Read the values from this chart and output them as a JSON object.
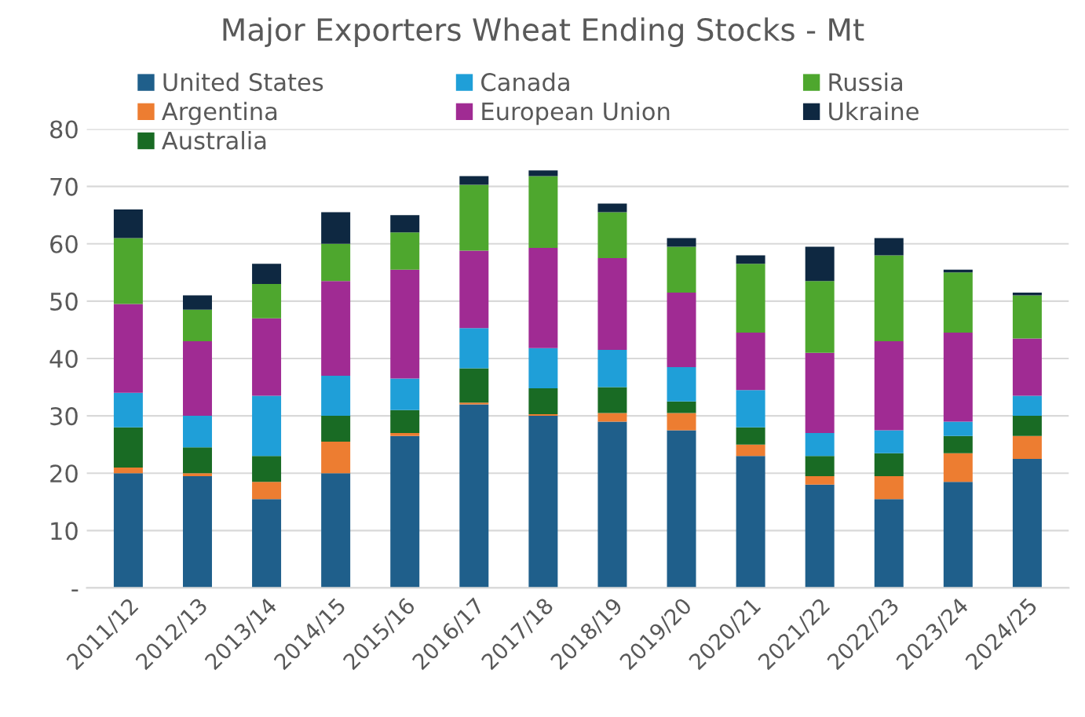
{
  "chart_data": {
    "type": "bar",
    "title": "Major Exporters Wheat Ending Stocks - Mt",
    "stacked": true,
    "categories": [
      "2011/12",
      "2012/13",
      "2013/14",
      "2014/15",
      "2015/16",
      "2016/17",
      "2017/18",
      "2018/19",
      "2019/20",
      "2020/21",
      "2021/22",
      "2022/23",
      "2023/24",
      "2024/25"
    ],
    "series": [
      {
        "name": "United States",
        "color": "#1f5f8b",
        "values": [
          20,
          19.5,
          15.5,
          20,
          26.5,
          32,
          30,
          29,
          27.5,
          23,
          18,
          15.5,
          18.5,
          22.5
        ]
      },
      {
        "name": "Argentina",
        "color": "#ed7d31",
        "values": [
          1,
          0.5,
          3,
          5.5,
          0.5,
          0.3,
          0.3,
          1.5,
          3,
          2,
          1.5,
          4,
          5,
          4
        ]
      },
      {
        "name": "Australia",
        "color": "#196b24",
        "values": [
          7,
          4.5,
          4.5,
          4.5,
          4,
          6,
          4.5,
          4.5,
          2,
          3,
          3.5,
          4,
          3,
          3.5
        ]
      },
      {
        "name": "Canada",
        "color": "#1f9fd8",
        "values": [
          6,
          5.5,
          10.5,
          7,
          5.5,
          7,
          7,
          6.5,
          6,
          6.5,
          4,
          4,
          2.5,
          3.5
        ]
      },
      {
        "name": "European Union",
        "color": "#a02b93",
        "values": [
          15.5,
          13,
          13.5,
          16.5,
          19,
          13.5,
          17.5,
          16,
          13,
          10,
          14,
          15.5,
          15.5,
          10
        ]
      },
      {
        "name": "Russia",
        "color": "#4ea72e",
        "values": [
          11.5,
          5.5,
          6,
          6.5,
          6.5,
          11.5,
          12.5,
          8,
          8,
          12,
          12.5,
          15,
          10.5,
          7.5
        ]
      },
      {
        "name": "Ukraine",
        "color": "#0e2841",
        "values": [
          5,
          2.5,
          3.5,
          5.5,
          3,
          1.5,
          1,
          1.5,
          1.5,
          1.5,
          6,
          3,
          0.5,
          0.5
        ]
      }
    ],
    "ylim": [
      0,
      80
    ],
    "yticks": [
      {
        "value": 0,
        "label": "-"
      },
      10,
      20,
      30,
      40,
      50,
      60,
      70,
      80
    ],
    "grid": "y",
    "legend": "top"
  }
}
